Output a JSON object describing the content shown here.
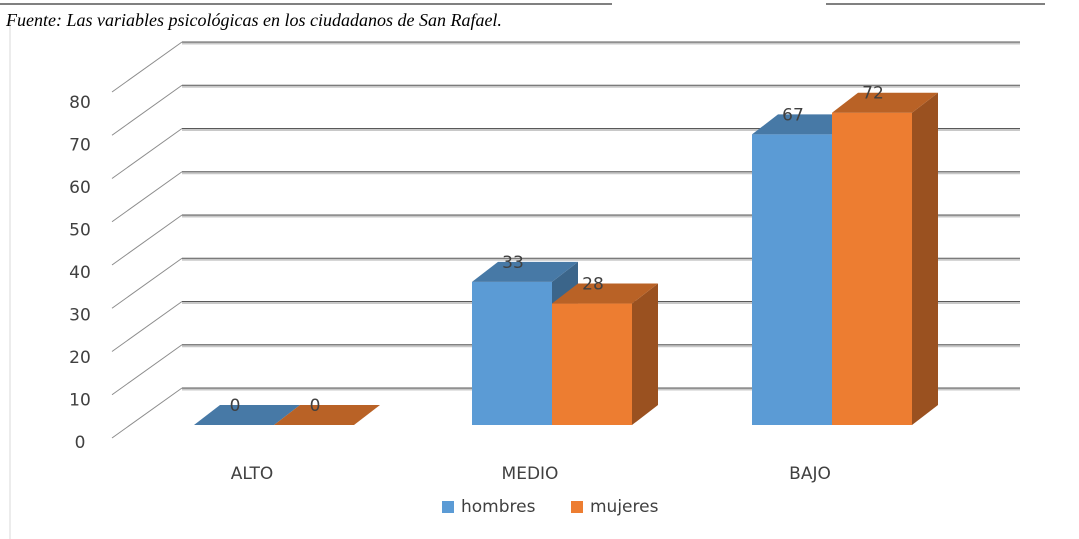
{
  "chart_data": {
    "type": "bar3d",
    "title": "Fuente: Las variables psicológicas en los ciudadanos de San Rafael.",
    "categories": [
      "ALTO",
      "MEDIO",
      "BAJO"
    ],
    "series": [
      {
        "name": "hombres",
        "color": "#5b9bd5",
        "values": [
          0,
          33,
          67
        ]
      },
      {
        "name": "mujeres",
        "color": "#ed7d31",
        "values": [
          0,
          28,
          72
        ]
      }
    ],
    "ylim": [
      0,
      80
    ],
    "yticks": [
      0,
      10,
      20,
      30,
      40,
      50,
      60,
      70,
      80
    ],
    "grid": true,
    "legend": "bottom"
  }
}
